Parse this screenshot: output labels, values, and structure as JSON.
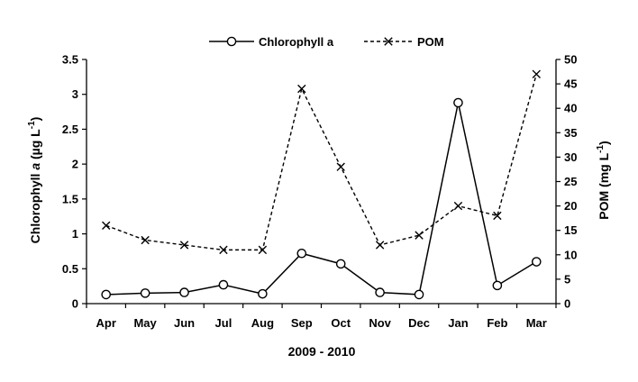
{
  "chart_data": {
    "type": "line",
    "title": "",
    "categories": [
      "Apr",
      "May",
      "Jun",
      "Jul",
      "Aug",
      "Sep",
      "Oct",
      "Nov",
      "Dec",
      "Jan",
      "Feb",
      "Mar"
    ],
    "xlabel": "2009 - 2010",
    "ylabel_left": {
      "prefix": "Chlorophyll ",
      "italic": "a",
      "unit": " (µg L",
      "sup": "-1",
      "close": ")"
    },
    "ylabel_right": {
      "prefix": "POM (mg L",
      "sup": "-1",
      "close": ")"
    },
    "y_left": {
      "min": 0,
      "max": 3.5,
      "step": 0.5,
      "tick_labels": [
        "0",
        "0.5",
        "1",
        "1.5",
        "2",
        "2.5",
        "3",
        "3.5"
      ]
    },
    "y_right": {
      "min": 0,
      "max": 50,
      "step": 5,
      "tick_labels": [
        "0",
        "5",
        "10",
        "15",
        "20",
        "25",
        "30",
        "35",
        "40",
        "45",
        "50"
      ]
    },
    "legend_position": "top-center",
    "grid": false,
    "series": [
      {
        "name": "Chlorophyll a",
        "axis": "left",
        "marker": "circle",
        "line": "solid",
        "values": [
          0.13,
          0.15,
          0.16,
          0.27,
          0.14,
          0.72,
          0.57,
          0.16,
          0.13,
          2.88,
          0.26,
          0.6
        ]
      },
      {
        "name": "POM",
        "axis": "right",
        "marker": "x",
        "line": "dashed",
        "values": [
          16,
          13,
          12,
          11,
          11,
          44,
          28,
          12,
          14,
          20,
          18,
          47
        ]
      }
    ]
  }
}
